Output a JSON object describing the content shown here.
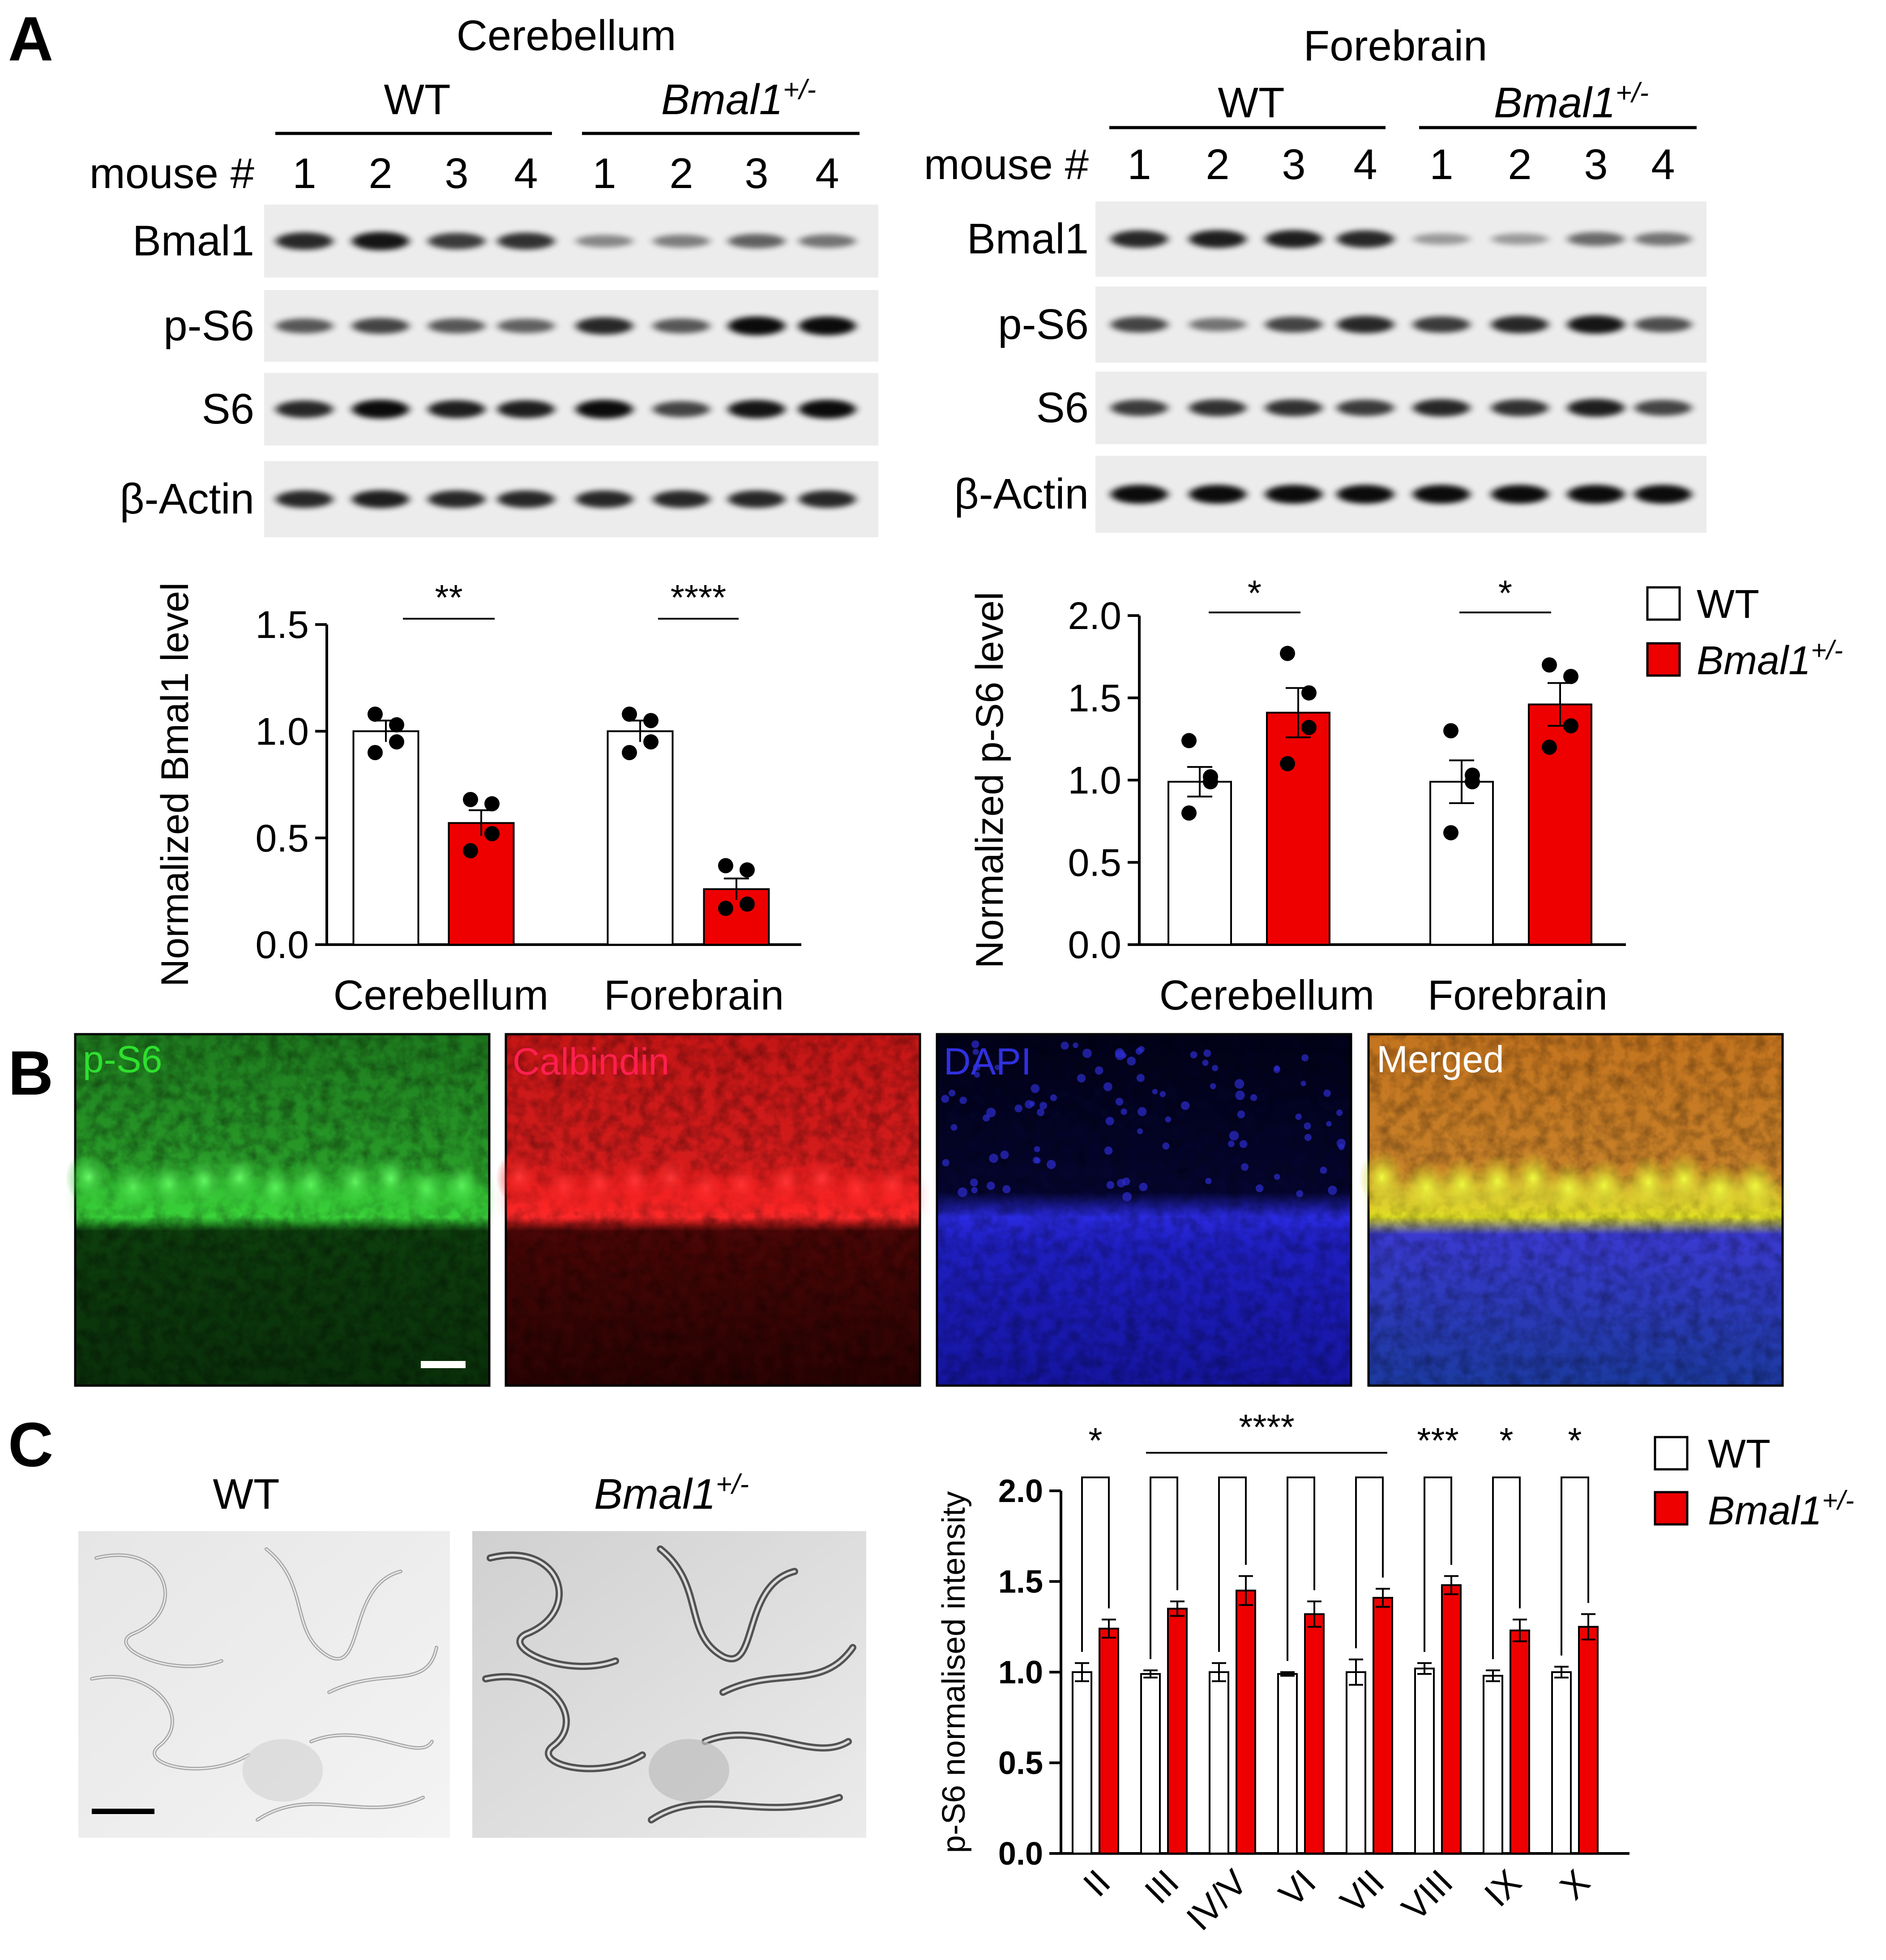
{
  "colors": {
    "wt": "#ffffff",
    "bmal": "#ee0000",
    "axis": "#000000",
    "green_channel": "#22c722",
    "red_channel": "#e01010",
    "blue_channel": "#2222ee"
  },
  "panelA": {
    "letter": "A",
    "blots": [
      {
        "tissue": "Cerebellum",
        "groups": [
          "WT",
          "Bmal1"
        ],
        "group_sup": "+/-",
        "mouse_label": "mouse #",
        "lanes": [
          "1",
          "2",
          "3",
          "4",
          "1",
          "2",
          "3",
          "4"
        ],
        "rows": [
          "Bmal1",
          "p-S6",
          "S6",
          "β-Actin"
        ],
        "band_intensity": [
          [
            0.85,
            0.95,
            0.75,
            0.8,
            0.35,
            0.4,
            0.55,
            0.45
          ],
          [
            0.6,
            0.7,
            0.6,
            0.55,
            0.85,
            0.6,
            1.0,
            1.0
          ],
          [
            0.85,
            1.0,
            0.9,
            0.9,
            1.0,
            0.7,
            0.95,
            1.0
          ],
          [
            0.85,
            0.9,
            0.85,
            0.85,
            0.85,
            0.85,
            0.85,
            0.85
          ]
        ]
      },
      {
        "tissue": "Forebrain",
        "groups": [
          "WT",
          "Bmal1"
        ],
        "group_sup": "+/-",
        "mouse_label": "mouse #",
        "lanes": [
          "1",
          "2",
          "3",
          "4",
          "1",
          "2",
          "3",
          "4"
        ],
        "rows": [
          "Bmal1",
          "p-S6",
          "S6",
          "β-Actin"
        ],
        "band_intensity": [
          [
            0.85,
            0.9,
            0.9,
            0.85,
            0.25,
            0.25,
            0.5,
            0.45
          ],
          [
            0.7,
            0.45,
            0.7,
            0.85,
            0.75,
            0.85,
            0.95,
            0.65
          ],
          [
            0.75,
            0.8,
            0.8,
            0.75,
            0.85,
            0.8,
            0.9,
            0.7
          ],
          [
            1.0,
            1.0,
            1.0,
            1.0,
            1.0,
            1.0,
            1.0,
            1.0
          ]
        ]
      }
    ]
  },
  "legend": {
    "wt": "WT",
    "bmal": "Bmal1",
    "bmal_sup": "+/-"
  },
  "chart_data": [
    {
      "type": "bar",
      "title": "",
      "ylabel": "Normalized Bmal1 level",
      "categories": [
        "Cerebellum",
        "Forebrain"
      ],
      "ylim": [
        0,
        1.5
      ],
      "yticks": [
        "0.0",
        "0.5",
        "1.0",
        "1.5"
      ],
      "series": [
        {
          "name": "WT",
          "values": [
            1.0,
            1.0
          ],
          "sem": [
            0.05,
            0.05
          ],
          "points": [
            [
              1.08,
              1.03,
              0.95,
              0.9
            ],
            [
              1.08,
              1.05,
              0.95,
              0.9
            ]
          ]
        },
        {
          "name": "Bmal1+/-",
          "values": [
            0.57,
            0.26
          ],
          "sem": [
            0.06,
            0.05
          ],
          "points": [
            [
              0.68,
              0.66,
              0.52,
              0.44
            ],
            [
              0.37,
              0.35,
              0.19,
              0.17
            ]
          ]
        }
      ],
      "significance": [
        "**",
        "****"
      ]
    },
    {
      "type": "bar",
      "title": "",
      "ylabel": "Normalized p-S6 level",
      "categories": [
        "Cerebellum",
        "Forebrain"
      ],
      "ylim": [
        0,
        2.0
      ],
      "yticks": [
        "0.0",
        "0.5",
        "1.0",
        "1.5",
        "2.0"
      ],
      "series": [
        {
          "name": "WT",
          "values": [
            0.99,
            0.99
          ],
          "sem": [
            0.09,
            0.13
          ],
          "points": [
            [
              1.24,
              1.02,
              0.99,
              0.8
            ],
            [
              1.3,
              1.03,
              0.99,
              0.68
            ]
          ]
        },
        {
          "name": "Bmal1+/-",
          "values": [
            1.41,
            1.46
          ],
          "sem": [
            0.15,
            0.13
          ],
          "points": [
            [
              1.77,
              1.53,
              1.32,
              1.1
            ],
            [
              1.7,
              1.63,
              1.33,
              1.2
            ]
          ]
        }
      ],
      "significance": [
        "*",
        "*"
      ]
    },
    {
      "type": "bar",
      "title": "",
      "ylabel": "p-S6 normalised intensity",
      "categories": [
        "II",
        "III",
        "IV/V",
        "VI",
        "VII",
        "VIII",
        "IX",
        "X"
      ],
      "ylim": [
        0,
        2.0
      ],
      "yticks": [
        "0.0",
        "0.5",
        "1.0",
        "1.5",
        "2.0"
      ],
      "series": [
        {
          "name": "WT",
          "values": [
            1.0,
            0.99,
            1.0,
            0.99,
            1.0,
            1.02,
            0.98,
            1.0
          ],
          "sem": [
            0.05,
            0.02,
            0.05,
            0.01,
            0.07,
            0.03,
            0.03,
            0.03
          ]
        },
        {
          "name": "Bmal1+/-",
          "values": [
            1.24,
            1.35,
            1.45,
            1.32,
            1.41,
            1.48,
            1.23,
            1.25
          ],
          "sem": [
            0.05,
            0.04,
            0.08,
            0.07,
            0.05,
            0.05,
            0.06,
            0.07
          ]
        }
      ],
      "significance": [
        {
          "label": "*",
          "over": [
            "II"
          ]
        },
        {
          "label": "****",
          "over": [
            "III",
            "IV/V",
            "VI",
            "VII"
          ]
        },
        {
          "label": "***",
          "over": [
            "VIII"
          ]
        },
        {
          "label": "*",
          "over": [
            "IX"
          ]
        },
        {
          "label": "*",
          "over": [
            "X"
          ]
        }
      ]
    }
  ],
  "panelB": {
    "letter": "B",
    "channels": [
      "p-S6",
      "Calbindin",
      "DAPI",
      "Merged"
    ]
  },
  "panelC": {
    "letter": "C",
    "labels": [
      "WT",
      "Bmal1"
    ],
    "label_sup": "+/-"
  }
}
